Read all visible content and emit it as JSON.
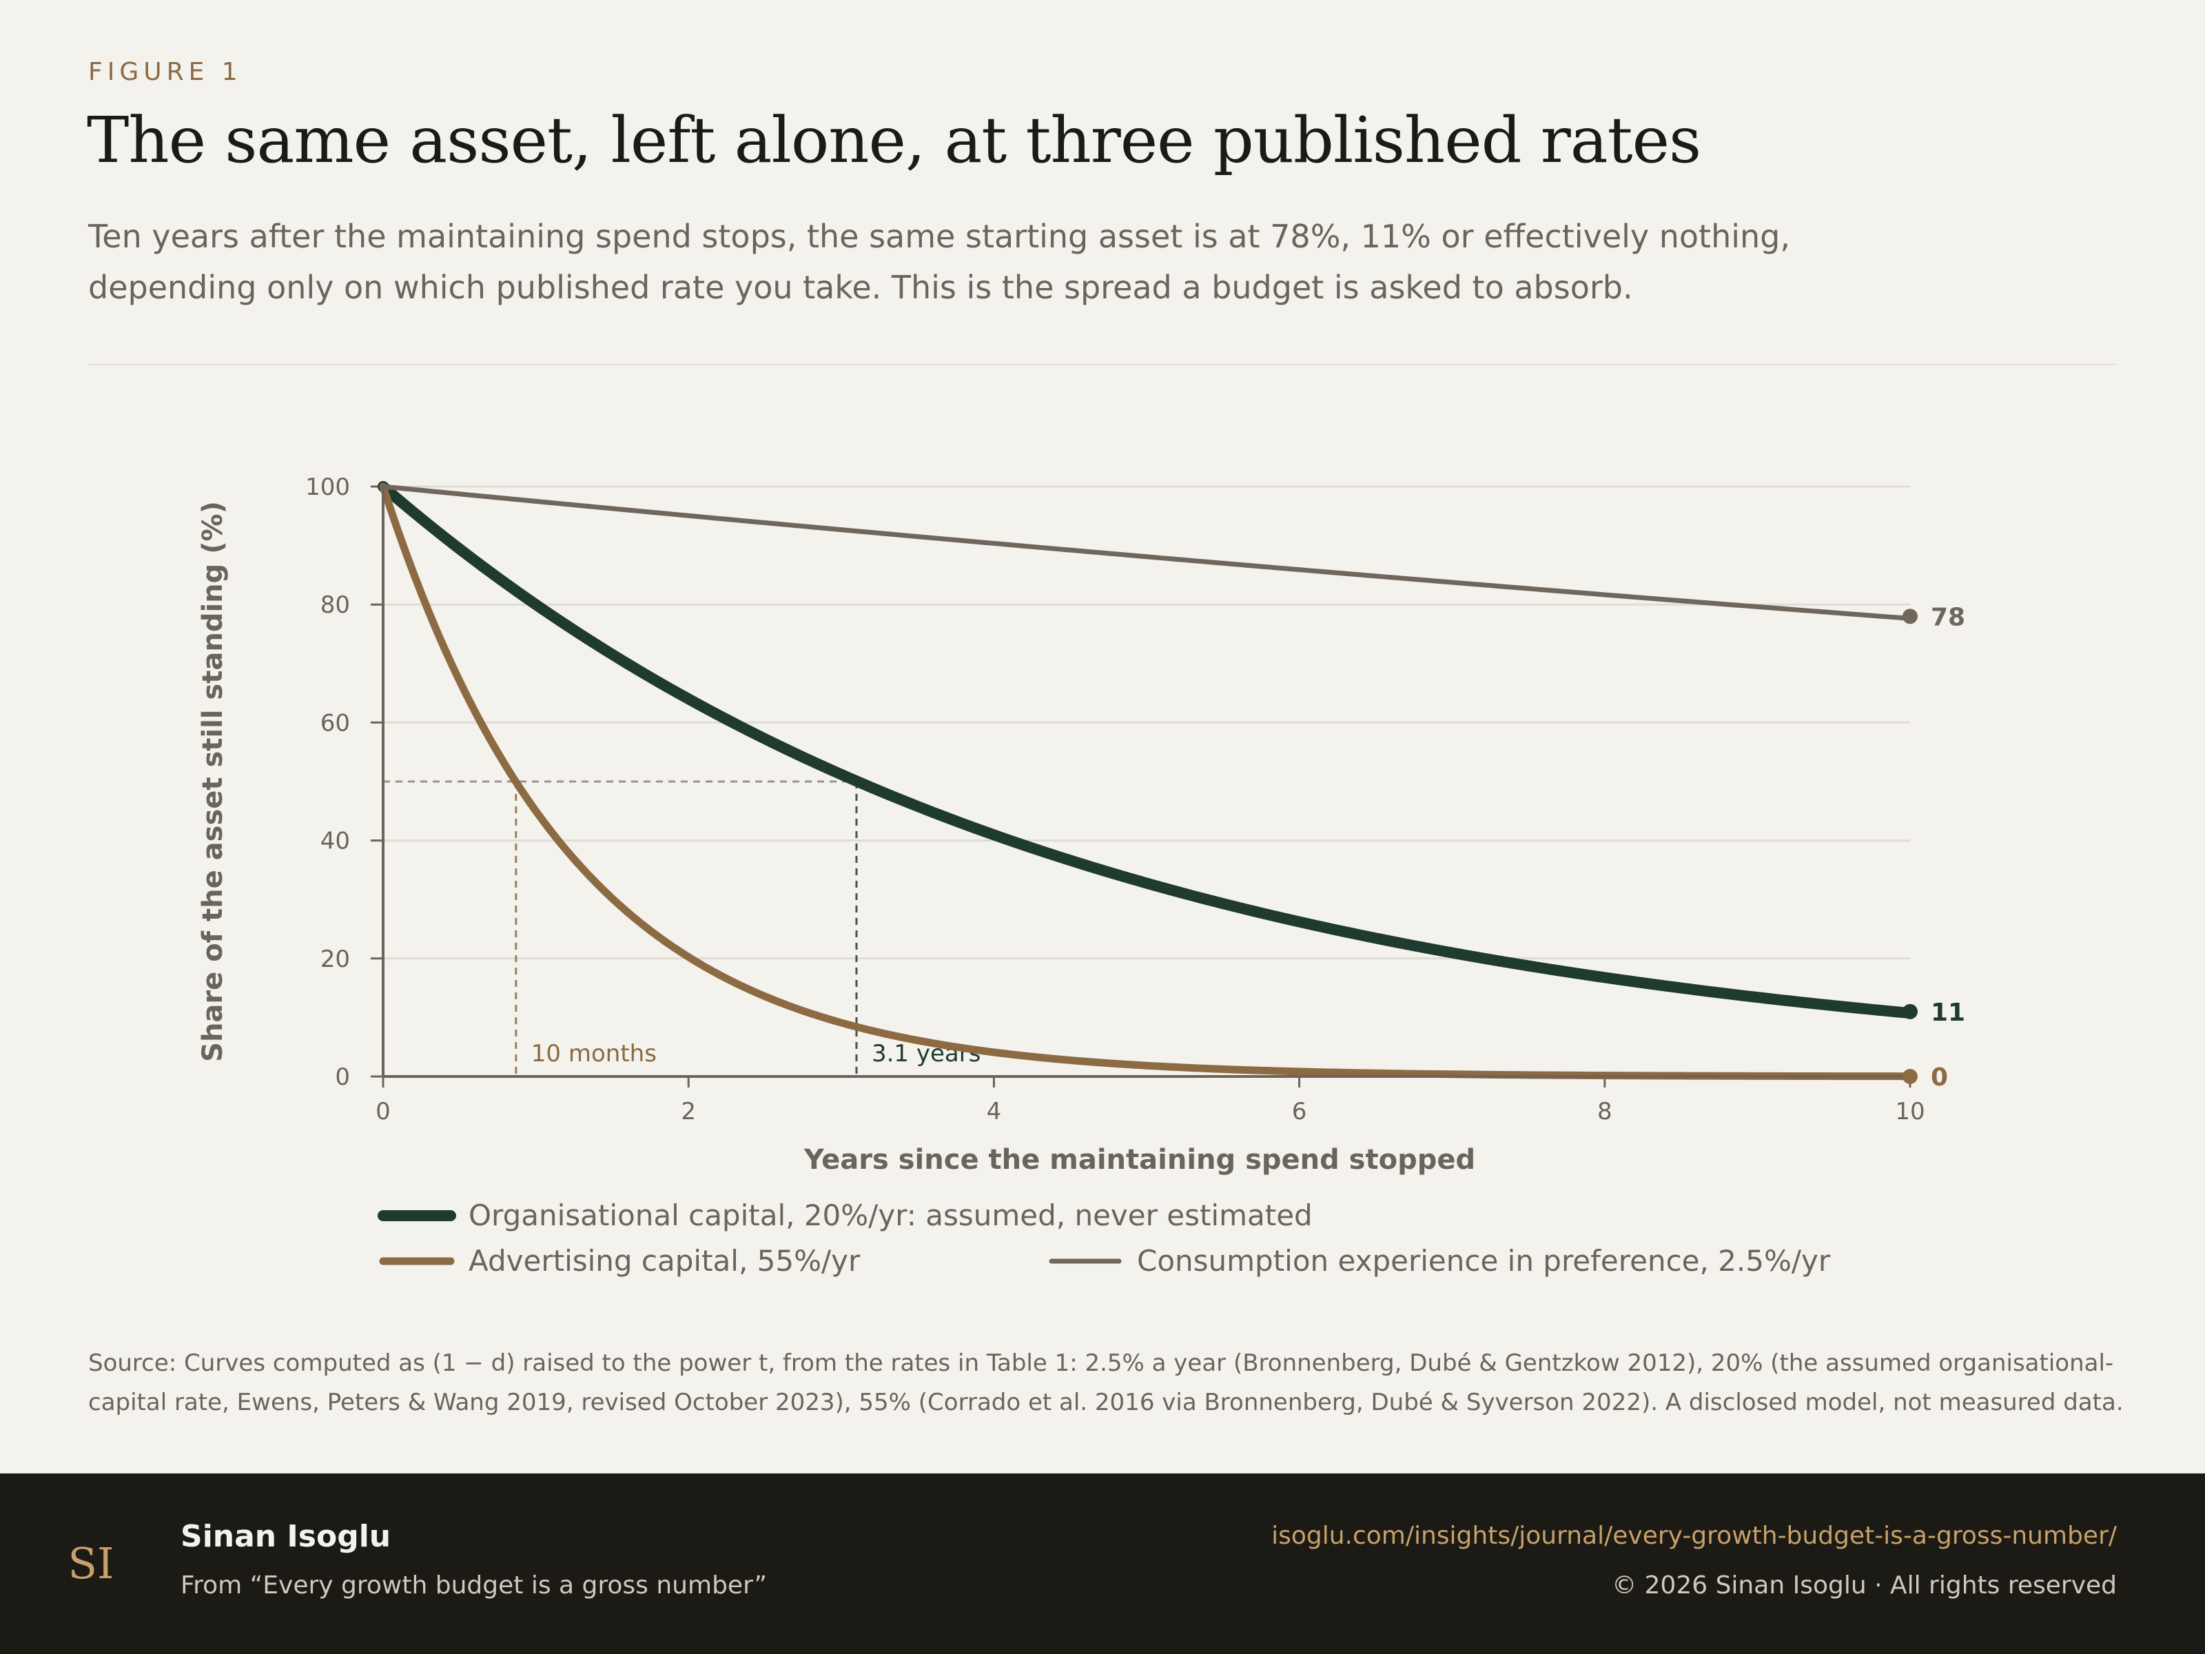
{
  "header": {
    "eyebrow": "FIGURE 1",
    "title": "The same asset, left alone, at three published rates",
    "subtitle_line1": "Ten years after the maintaining spend stops, the same starting asset is at 78%, 11% or effectively nothing,",
    "subtitle_line2": "depending only on which published rate you take. This is the spread a budget is asked to absorb."
  },
  "chart_data": {
    "type": "line",
    "xlabel": "Years since the maintaining spend stopped",
    "ylabel": "Share of the asset still standing (%)",
    "xlim": [
      0,
      10
    ],
    "ylim": [
      0,
      100
    ],
    "xticks": [
      0,
      2,
      4,
      6,
      8,
      10
    ],
    "yticks": [
      0,
      20,
      40,
      60,
      80,
      100
    ],
    "grid": "horizontal",
    "legend_placement": "bottom",
    "formula": "100 * (1 - rate) ^ years",
    "series": [
      {
        "name": "Organisational capital, 20%/yr: assumed, never estimated",
        "rate": 0.2,
        "end_value": 11,
        "end_label": "11",
        "color": "#1f3a2e"
      },
      {
        "name": "Advertising capital, 55%/yr",
        "rate": 0.55,
        "end_value": 0,
        "end_label": "0",
        "color": "#8c6a42"
      },
      {
        "name": "Consumption experience in preference, 2.5%/yr",
        "rate": 0.025,
        "end_value": 78,
        "end_label": "78",
        "color": "#6f665c"
      }
    ],
    "half_life_level": 50,
    "annotations": [
      {
        "text": "10 months",
        "x": 0.87,
        "series": "Advertising capital, 55%/yr",
        "color": "#8c6a42"
      },
      {
        "text": "3.1 years",
        "x": 3.1,
        "series": "Organisational capital, 20%/yr: assumed, never estimated",
        "color": "#1f3a2e"
      }
    ]
  },
  "source": {
    "text": "Source: Curves computed as (1 − d) raised to the power t, from the rates in Table 1: 2.5% a year (Bronnenberg, Dubé & Gentzkow 2012), 20% (the assumed organisational-capital rate, Ewens, Peters & Wang 2019, revised October 2023), 55% (Corrado et al. 2016 via Bronnenberg, Dubé & Syverson 2022). A disclosed model, not measured data."
  },
  "footer": {
    "author": "Sinan Isoglu",
    "from": "From “Every growth budget is a gross number”",
    "url": "isoglu.com/insights/journal/every-growth-budget-is-a-gross-number/",
    "copyright": "© 2026 Sinan Isoglu · All rights reserved",
    "logo_text": "SI"
  }
}
